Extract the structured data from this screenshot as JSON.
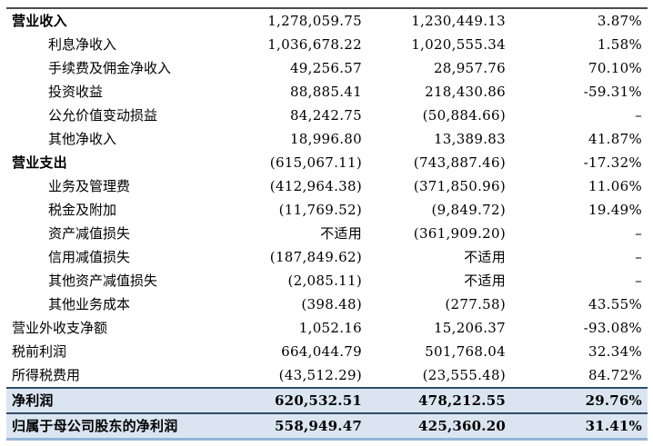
{
  "colors": {
    "highlight_row_bg": "#dbe5f1",
    "highlight_row_border": "#2f4b68",
    "table_top_border": "#4d4d4d",
    "table_bottom_border": "#95b3d7",
    "text": "#000000"
  },
  "table": {
    "rows": [
      {
        "label": "营业收入",
        "indent": false,
        "label_bold": true,
        "row_bold": false,
        "highlight": false,
        "current": "1,278,059.75",
        "prior": "1,230,449.13",
        "change": "3.87%"
      },
      {
        "label": "利息净收入",
        "indent": true,
        "label_bold": false,
        "row_bold": false,
        "highlight": false,
        "current": "1,036,678.22",
        "prior": "1,020,555.34",
        "change": "1.58%"
      },
      {
        "label": "手续费及佣金净收入",
        "indent": true,
        "label_bold": false,
        "row_bold": false,
        "highlight": false,
        "current": "49,256.57",
        "prior": "28,957.76",
        "change": "70.10%"
      },
      {
        "label": "投资收益",
        "indent": true,
        "label_bold": false,
        "row_bold": false,
        "highlight": false,
        "current": "88,885.41",
        "prior": "218,430.86",
        "change": "-59.31%"
      },
      {
        "label": "公允价值变动损益",
        "indent": true,
        "label_bold": false,
        "row_bold": false,
        "highlight": false,
        "current": "84,242.75",
        "prior": "(50,884.66)",
        "change": "–"
      },
      {
        "label": "其他净收入",
        "indent": true,
        "label_bold": false,
        "row_bold": false,
        "highlight": false,
        "current": "18,996.80",
        "prior": "13,389.83",
        "change": "41.87%"
      },
      {
        "label": "营业支出",
        "indent": false,
        "label_bold": true,
        "row_bold": false,
        "highlight": false,
        "current": "(615,067.11)",
        "prior": "(743,887.46)",
        "change": "-17.32%"
      },
      {
        "label": "业务及管理费",
        "indent": true,
        "label_bold": false,
        "row_bold": false,
        "highlight": false,
        "current": "(412,964.38)",
        "prior": "(371,850.96)",
        "change": "11.06%"
      },
      {
        "label": "税金及附加",
        "indent": true,
        "label_bold": false,
        "row_bold": false,
        "highlight": false,
        "current": "(11,769.52)",
        "prior": "(9,849.72)",
        "change": "19.49%"
      },
      {
        "label": "资产减值损失",
        "indent": true,
        "label_bold": false,
        "row_bold": false,
        "highlight": false,
        "current": "不适用",
        "prior": "(361,909.20)",
        "change": "–"
      },
      {
        "label": "信用减值损失",
        "indent": true,
        "label_bold": false,
        "row_bold": false,
        "highlight": false,
        "current": "(187,849.62)",
        "prior": "不适用",
        "change": "–"
      },
      {
        "label": "其他资产减值损失",
        "indent": true,
        "label_bold": false,
        "row_bold": false,
        "highlight": false,
        "current": "(2,085.11)",
        "prior": "不适用",
        "change": "–"
      },
      {
        "label": "其他业务成本",
        "indent": true,
        "label_bold": false,
        "row_bold": false,
        "highlight": false,
        "current": "(398.48)",
        "prior": "(277.58)",
        "change": "43.55%"
      },
      {
        "label": "营业外收支净额",
        "indent": false,
        "label_bold": false,
        "row_bold": false,
        "highlight": false,
        "current": "1,052.16",
        "prior": "15,206.37",
        "change": "-93.08%"
      },
      {
        "label": "税前利润",
        "indent": false,
        "label_bold": false,
        "row_bold": false,
        "highlight": false,
        "current": "664,044.79",
        "prior": "501,768.04",
        "change": "32.34%"
      },
      {
        "label": "所得税费用",
        "indent": false,
        "label_bold": false,
        "row_bold": false,
        "highlight": false,
        "current": "(43,512.29)",
        "prior": "(23,555.48)",
        "change": "84.72%"
      },
      {
        "label": "净利润",
        "indent": false,
        "label_bold": true,
        "row_bold": true,
        "highlight": true,
        "current": "620,532.51",
        "prior": "478,212.55",
        "change": "29.76%"
      },
      {
        "label": "归属于母公司股东的净利润",
        "indent": false,
        "label_bold": true,
        "row_bold": true,
        "highlight": true,
        "current": "558,949.47",
        "prior": "425,360.20",
        "change": "31.41%"
      }
    ]
  }
}
